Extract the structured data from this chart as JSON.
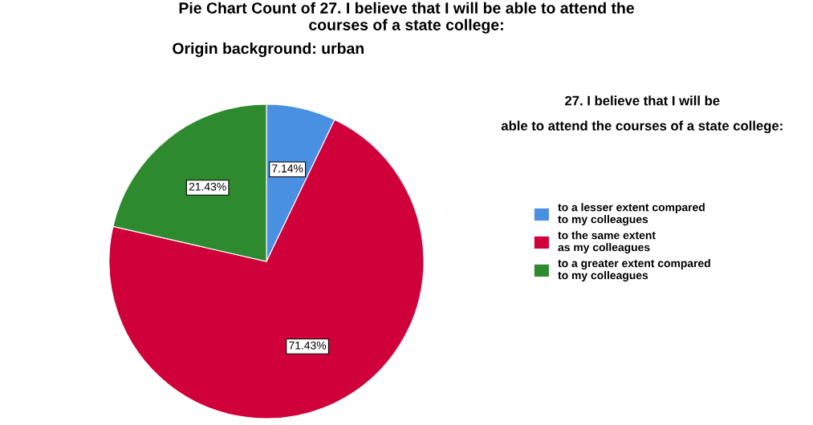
{
  "chart_data": {
    "type": "pie",
    "title": "Pie Chart Count of 27. I believe that I will be able to attend the\ncourses of a state college:",
    "subtitle": "Origin background: urban",
    "legend_title": "27. I believe that I will be\nable to attend the courses of a state college:",
    "categories": [
      "to a lesser extent compared\nto my colleagues",
      "to the same extent\nas my colleagues",
      "to a greater extent compared\nto my colleagues"
    ],
    "values": [
      7.14,
      71.43,
      21.43
    ],
    "colors": [
      "#4a90e2",
      "#d0003a",
      "#2e8a2e"
    ],
    "value_labels": [
      "7.14%",
      "71.43%",
      "21.43%"
    ],
    "legend": "right"
  }
}
